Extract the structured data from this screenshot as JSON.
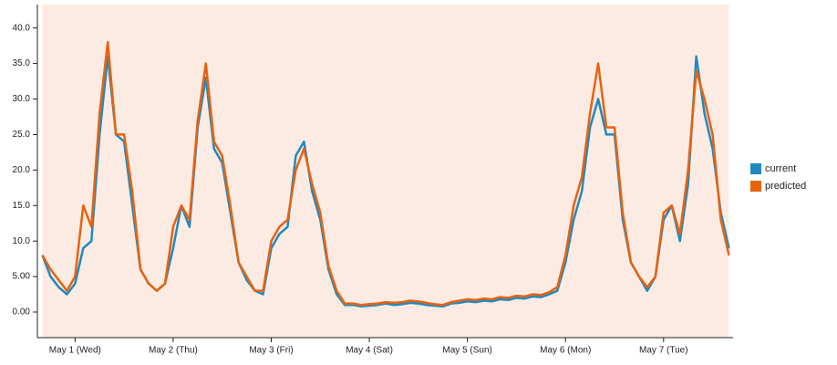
{
  "chart_data": {
    "type": "line",
    "x": [
      -8,
      -6,
      -4,
      -2,
      0,
      2,
      4,
      6,
      8,
      10,
      12,
      14,
      16,
      18,
      20,
      22,
      24,
      26,
      28,
      30,
      32,
      34,
      36,
      38,
      40,
      42,
      44,
      46,
      48,
      50,
      52,
      54,
      56,
      58,
      60,
      62,
      64,
      66,
      68,
      70,
      72,
      74,
      76,
      78,
      80,
      82,
      84,
      86,
      88,
      90,
      92,
      94,
      96,
      98,
      100,
      102,
      104,
      106,
      108,
      110,
      112,
      114,
      116,
      118,
      120,
      122,
      124,
      126,
      128,
      130,
      132,
      134,
      136,
      138,
      140,
      142,
      144,
      146,
      148,
      150,
      152,
      154,
      156,
      158,
      160
    ],
    "series": [
      {
        "name": "current",
        "color": "#1f8ac0",
        "values": [
          8,
          5,
          3.5,
          2.5,
          4,
          9,
          10,
          25,
          36,
          25,
          24,
          15,
          6,
          4,
          3,
          4,
          9,
          15,
          12,
          26,
          33,
          23,
          21,
          14,
          7,
          4.5,
          3,
          2.5,
          9,
          11,
          12,
          22,
          24,
          17,
          13,
          6,
          2.5,
          1,
          1,
          0.8,
          0.9,
          1,
          1.2,
          1,
          1.1,
          1.3,
          1.2,
          1,
          0.9,
          0.8,
          1.2,
          1.3,
          1.5,
          1.4,
          1.6,
          1.5,
          1.8,
          1.7,
          2,
          1.9,
          2.2,
          2.1,
          2.5,
          3,
          7,
          13,
          17,
          26,
          30,
          25,
          25,
          13,
          7,
          5,
          3,
          5,
          13,
          15,
          10,
          18,
          36,
          28,
          23,
          14,
          9
        ]
      },
      {
        "name": "predicted",
        "color": "#e8620f",
        "values": [
          8,
          6,
          4.5,
          3,
          5,
          15,
          12,
          28,
          38,
          25,
          25,
          17,
          6,
          4,
          3,
          4,
          12,
          15,
          13,
          27,
          35,
          24,
          22,
          15,
          7,
          5,
          3,
          3,
          10,
          12,
          13,
          20,
          23,
          18,
          14,
          6.5,
          3,
          1.2,
          1.2,
          1,
          1.1,
          1.2,
          1.4,
          1.3,
          1.4,
          1.6,
          1.5,
          1.3,
          1.1,
          1,
          1.4,
          1.6,
          1.8,
          1.7,
          1.9,
          1.8,
          2.1,
          2,
          2.3,
          2.2,
          2.5,
          2.4,
          2.8,
          3.5,
          8,
          15,
          19,
          28,
          35,
          26,
          26,
          14,
          7,
          5,
          3.5,
          5,
          14,
          15,
          11,
          20,
          34,
          30,
          25,
          13,
          8
        ]
      }
    ],
    "xlim": [
      -9,
      161
    ],
    "xticks": [
      {
        "value": 0,
        "label": "May 1 (Wed)"
      },
      {
        "value": 24,
        "label": "May 2 (Thu)"
      },
      {
        "value": 48,
        "label": "May 3 (Fri)"
      },
      {
        "value": 72,
        "label": "May 4 (Sat)"
      },
      {
        "value": 96,
        "label": "May 5 (Sun)"
      },
      {
        "value": 120,
        "label": "May 6 (Mon)"
      },
      {
        "value": 144,
        "label": "May 7 (Tue)"
      }
    ],
    "ylim": [
      -3.6,
      43.3
    ],
    "yticks": [
      {
        "value": 0,
        "label": "0.00"
      },
      {
        "value": 5,
        "label": "5.00"
      },
      {
        "value": 10,
        "label": "10.0"
      },
      {
        "value": 15,
        "label": "15.0"
      },
      {
        "value": 20,
        "label": "20.0"
      },
      {
        "value": 25,
        "label": "25.0"
      },
      {
        "value": 30,
        "label": "30.0"
      },
      {
        "value": 35,
        "label": "35.0"
      },
      {
        "value": 40,
        "label": "40.0"
      }
    ],
    "legend": "right"
  }
}
